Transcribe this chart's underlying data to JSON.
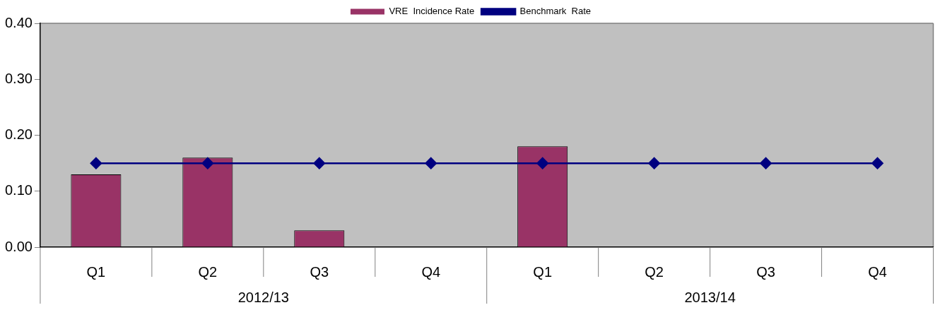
{
  "chart_data": {
    "type": "bar",
    "categories": [
      "Q1",
      "Q2",
      "Q3",
      "Q4",
      "Q1",
      "Q2",
      "Q3",
      "Q4"
    ],
    "annotations": [
      "2012/13",
      "2013/14"
    ],
    "series": [
      {
        "name": "VRE  Incidence Rate",
        "color": "#993366",
        "values": [
          0.13,
          0.16,
          0.03,
          null,
          0.18,
          null,
          null,
          null
        ]
      },
      {
        "name": "Benchmark  Rate",
        "type": "line",
        "color": "#000080",
        "marker": "diamond",
        "values": [
          0.15,
          0.15,
          0.15,
          0.15,
          0.15,
          0.15,
          0.15,
          0.15
        ]
      }
    ],
    "ylim": [
      0,
      0.4
    ],
    "yticks": [
      {
        "value": 0,
        "label": "0.00"
      },
      {
        "value": 0.1,
        "label": "0.10"
      },
      {
        "value": 0.2,
        "label": "0.20"
      },
      {
        "value": 0.3,
        "label": "0.30"
      },
      {
        "value": 0.4,
        "label": "0.40"
      }
    ],
    "grid": false,
    "legend": "top"
  }
}
